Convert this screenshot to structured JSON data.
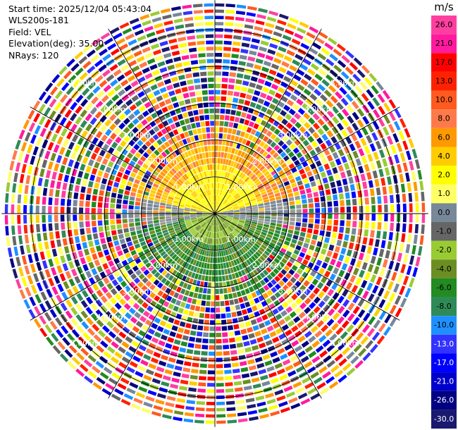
{
  "header": {
    "start_time": "Start time: 2025/12/04 05:43:04",
    "site": "WLS200s-181",
    "field": "Field: VEL",
    "elevation": "Elevation(deg): 35.00",
    "nrays": "NRays: 120"
  },
  "chart_data": {
    "type": "heatmap",
    "projection": "polar PPI",
    "field": "VEL",
    "elevation_deg": 35.0,
    "n_rays": 120,
    "range_rings_km": [
      1.0,
      2.0,
      3.0,
      4.0,
      5.0
    ],
    "ring_labels": [
      "1.00km",
      "2.00km",
      "3.00km",
      "4.00km",
      "5.00km"
    ],
    "max_range_km": 5.8,
    "radial_spokes_deg": [
      0,
      30,
      60,
      90,
      120,
      150,
      180,
      210,
      240,
      270,
      300,
      330
    ],
    "signal_regions": [
      {
        "range_km": [
          0,
          2.3
        ],
        "azimuth_deg": [
          270,
          90
        ],
        "velocity_ms_typical": [
          2.0,
          8.0
        ],
        "description": "receding, yellow-orange"
      },
      {
        "range_km": [
          0,
          2.3
        ],
        "azimuth_deg": [
          90,
          270
        ],
        "velocity_ms_typical": [
          -8.0,
          -2.0
        ],
        "description": "approaching, green"
      },
      {
        "range_km": [
          2.3,
          5.8
        ],
        "azimuth_deg": [
          0,
          360
        ],
        "velocity_ms_typical": "noise",
        "description": "random noise beyond signal range"
      }
    ],
    "colorbar": {
      "unit": "m/s",
      "ticks": [
        "26.0",
        "21.0",
        "17.0",
        "13.0",
        "10.0",
        "8.0",
        "6.0",
        "4.0",
        "2.0",
        "1.0",
        "0.0",
        "-1.0",
        "-2.0",
        "-4.0",
        "-6.0",
        "-8.0",
        "-10.0",
        "-13.0",
        "-17.0",
        "-21.0",
        "-26.0",
        "-30.0"
      ],
      "colors": [
        "#ff3fa0",
        "#ff1a9e",
        "#ff0000",
        "#ff2200",
        "#ff5a1f",
        "#ff7a4a",
        "#ff9900",
        "#ffcc00",
        "#ffff00",
        "#ffff66",
        "#778899",
        "#666666",
        "#99cc33",
        "#6b8e23",
        "#228b22",
        "#2e8b57",
        "#1e90ff",
        "#3333ff",
        "#0000ff",
        "#0000cc",
        "#000080",
        "#191970"
      ]
    }
  }
}
